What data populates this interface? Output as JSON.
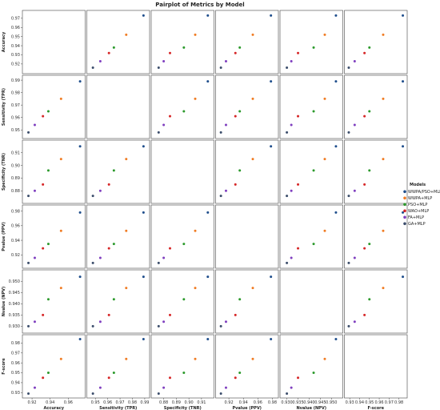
{
  "chart_data": {
    "type": "scatter",
    "title": "Pairplot of Metrics by Model",
    "variables": [
      "Accuracy",
      "Sensitivity (TPR)",
      "Specificity (TNR)",
      "Pvalue (PPV)",
      "Nvalue (NPV)",
      "F-score"
    ],
    "ranges": [
      [
        0.912,
        0.976
      ],
      [
        0.945,
        0.992
      ],
      [
        0.872,
        0.918
      ],
      [
        0.905,
        0.985
      ],
      [
        0.928,
        0.954
      ],
      [
        0.927,
        0.986
      ]
    ],
    "ticks": [
      [
        0.92,
        0.94,
        0.96
      ],
      [
        0.95,
        0.96,
        0.97,
        0.98,
        0.99
      ],
      [
        0.88,
        0.89,
        0.9,
        0.91
      ],
      [
        0.92,
        0.94,
        0.96,
        0.98
      ],
      [
        0.93,
        0.935,
        0.94,
        0.945,
        0.95
      ],
      [
        0.93,
        0.94,
        0.95,
        0.96,
        0.97,
        0.98
      ]
    ],
    "tick_labels": [
      [
        "0.92",
        "0.94",
        "0.96"
      ],
      [
        "0.95",
        "0.96",
        "0.97",
        "0.98",
        "0.99"
      ],
      [
        "0.88",
        "0.89",
        "0.90",
        "0.91"
      ],
      [
        "0.92",
        "0.94",
        "0.96",
        "0.98"
      ],
      [
        "0.930",
        "0.935",
        "0.940",
        "0.945",
        "0.950"
      ],
      [
        "0.93",
        "0.94",
        "0.95",
        "0.96",
        "0.97",
        "0.98"
      ]
    ],
    "y_tick_labels": [
      [
        "0.92",
        "0.93",
        "0.94",
        "0.95",
        "0.96",
        "0.97"
      ],
      [
        "0.95",
        "0.96",
        "0.97",
        "0.98",
        "0.99"
      ],
      [
        "0.88",
        "0.89",
        "0.90",
        "0.91"
      ],
      [
        "0.92",
        "0.94",
        "0.96",
        "0.98"
      ],
      [
        "0.930",
        "0.935",
        "0.940",
        "0.945",
        "0.950"
      ],
      [
        "0.93",
        "0.94",
        "0.95",
        "0.96",
        "0.97",
        "0.98"
      ]
    ],
    "y_ticks": [
      [
        0.92,
        0.93,
        0.94,
        0.95,
        0.96,
        0.97
      ],
      [
        0.95,
        0.96,
        0.97,
        0.98,
        0.99
      ],
      [
        0.88,
        0.89,
        0.9,
        0.91
      ],
      [
        0.92,
        0.94,
        0.96,
        0.98
      ],
      [
        0.93,
        0.935,
        0.94,
        0.945,
        0.95
      ],
      [
        0.93,
        0.94,
        0.95,
        0.96,
        0.97,
        0.98
      ]
    ],
    "legend": {
      "title": "Models",
      "placement": "right"
    },
    "series": [
      {
        "name": "WWPA/PSO+MLP",
        "color": "#1f4e8c",
        "values": [
          0.973,
          0.989,
          0.915,
          0.978,
          0.952,
          0.984
        ]
      },
      {
        "name": "WWPA+MLP",
        "color": "#f07c24",
        "values": [
          0.952,
          0.975,
          0.905,
          0.953,
          0.947,
          0.964
        ]
      },
      {
        "name": "PSO+MLP",
        "color": "#2c9a2c",
        "values": [
          0.938,
          0.965,
          0.896,
          0.935,
          0.942,
          0.95
        ]
      },
      {
        "name": "WAO+MLP",
        "color": "#d62728",
        "values": [
          0.932,
          0.961,
          0.885,
          0.929,
          0.935,
          0.945
        ]
      },
      {
        "name": "FA+MLP",
        "color": "#7f3fbf",
        "values": [
          0.923,
          0.954,
          0.88,
          0.916,
          0.932,
          0.935
        ]
      },
      {
        "name": "GA+MLP",
        "color": "#3b4d6b",
        "values": [
          0.916,
          0.948,
          0.876,
          0.909,
          0.93,
          0.929
        ]
      }
    ]
  }
}
